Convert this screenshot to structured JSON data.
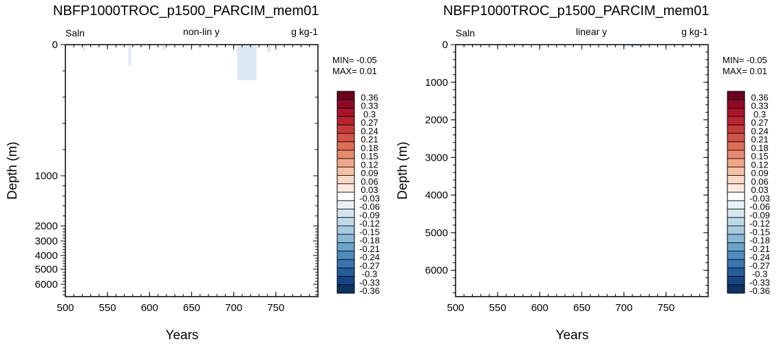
{
  "chart_data": [
    {
      "type": "heatmap",
      "title": "NBFP1000TROC_p1500_PARCIM_mem01",
      "variable_label": "Saln",
      "scale_label": "non-lin y",
      "units_label": "g kg-1",
      "xlabel": "Years",
      "ylabel": "Depth (m)",
      "x_range": [
        500,
        800
      ],
      "x_ticks": [
        "500",
        "550",
        "600",
        "650",
        "700",
        "750"
      ],
      "y_range": [
        0,
        6700
      ],
      "y_scale": "nonlinear",
      "y_ticks": [
        "0",
        "1000",
        "2000",
        "3000",
        "4000",
        "5000",
        "6000"
      ],
      "min_label": "MIN= -0.05",
      "max_label": "MAX=  0.01",
      "anomalies": [
        {
          "x0": 520,
          "x1": 523,
          "y0": 0,
          "y1": 50,
          "level": "-0.03"
        },
        {
          "x0": 575,
          "x1": 578,
          "y0": 0,
          "y1": 160,
          "level": "-0.03"
        },
        {
          "x0": 616,
          "x1": 619,
          "y0": 0,
          "y1": 40,
          "level": "-0.03"
        },
        {
          "x0": 704,
          "x1": 727,
          "y0": 0,
          "y1": 270,
          "level": "-0.03"
        },
        {
          "x0": 740,
          "x1": 744,
          "y0": 0,
          "y1": 60,
          "level": "-0.03"
        }
      ]
    },
    {
      "type": "heatmap",
      "title": "NBFP1000TROC_p1500_PARCIM_mem01",
      "variable_label": "Saln",
      "scale_label": "linear y",
      "units_label": "g kg-1",
      "xlabel": "Years",
      "ylabel": "Depth (m)",
      "x_range": [
        500,
        800
      ],
      "x_ticks": [
        "500",
        "550",
        "600",
        "650",
        "700",
        "750"
      ],
      "y_range": [
        0,
        6700
      ],
      "y_scale": "linear",
      "y_ticks": [
        "0",
        "1000",
        "2000",
        "3000",
        "4000",
        "5000",
        "6000"
      ],
      "min_label": "MIN= -0.05",
      "max_label": "MAX=  0.01",
      "anomalies": [
        {
          "x0": 704,
          "x1": 727,
          "y0": 0,
          "y1": 60,
          "level": "-0.03"
        }
      ]
    }
  ],
  "colorbar": {
    "labels": [
      "0.36",
      "0.33",
      "0.3",
      "0.27",
      "0.24",
      "0.21",
      "0.18",
      "0.15",
      "0.12",
      "0.09",
      "0.06",
      "0.03",
      "-0.03",
      "-0.06",
      "-0.09",
      "-0.12",
      "-0.15",
      "-0.18",
      "-0.21",
      "-0.24",
      "-0.27",
      "-0.3",
      "-0.33",
      "-0.36"
    ],
    "colors": [
      "#6b0021",
      "#8e0a26",
      "#a8152b",
      "#b8242f",
      "#c53b3a",
      "#d15447",
      "#dc6e58",
      "#e68a6f",
      "#f0a688",
      "#f6c1a5",
      "#f9d8c4",
      "#fbebdf",
      "#ffffff",
      "#e9f1f6",
      "#d6e6f0",
      "#bfd9ea",
      "#a6cbe1",
      "#89b9d7",
      "#69a4cb",
      "#4d8dbf",
      "#3675af",
      "#235d9a",
      "#154683",
      "#0c3362"
    ],
    "light_anomaly_color": "#dce9f2"
  }
}
